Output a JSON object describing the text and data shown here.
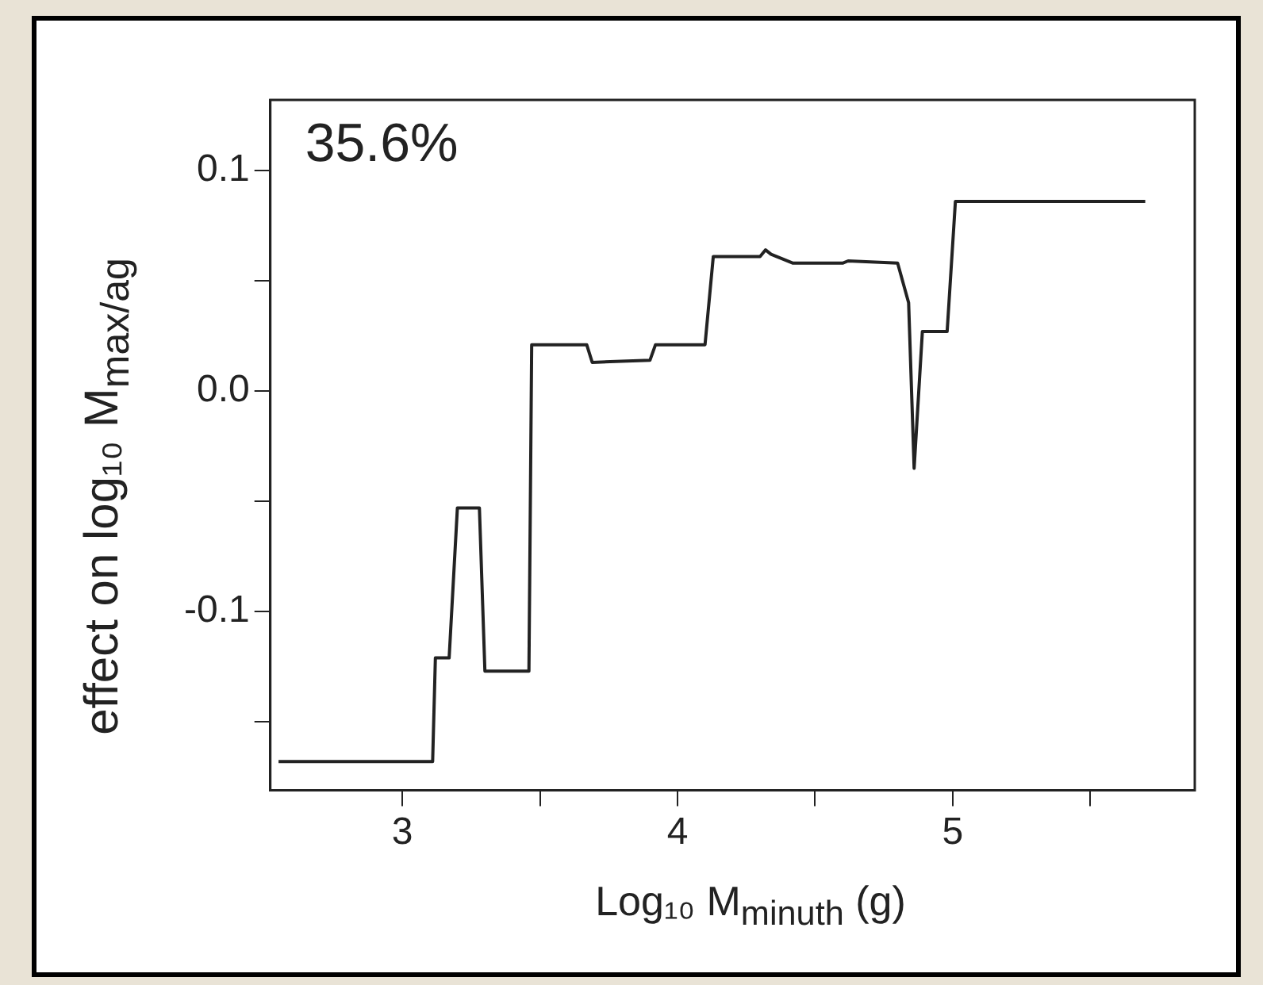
{
  "chart_data": {
    "type": "line",
    "xlabel": "Log₁₀ M$_{minuth}$ (g)",
    "ylabel": "effect on log₁₀ M$_{max/ag}$",
    "annotations": [
      "35.6%"
    ],
    "xlim": [
      2.52,
      5.88
    ],
    "xticks": [
      3,
      {
        "value": 3.5,
        "label": null
      },
      4,
      {
        "value": 4.5,
        "label": null
      },
      5,
      {
        "value": 5.5,
        "label": null
      }
    ],
    "ylim": [
      -0.181,
      0.132
    ],
    "yticks": [
      {
        "value": -0.15,
        "label": null
      },
      {
        "value": -0.1,
        "label": "-0.1"
      },
      {
        "value": -0.05,
        "label": null
      },
      {
        "value": 0,
        "label": "0.0"
      },
      {
        "value": 0.05,
        "label": null
      },
      {
        "value": 0.1,
        "label": "0.1"
      }
    ],
    "grid": false,
    "legend": false,
    "marker": "none",
    "line_style": "solid",
    "series": [
      {
        "color": "#222222",
        "x": [
          2.55,
          3.11,
          3.12,
          3.17,
          3.2,
          3.28,
          3.3,
          3.46,
          3.47,
          3.67,
          3.69,
          3.9,
          3.92,
          4.1,
          4.13,
          4.3,
          4.32,
          4.34,
          4.42,
          4.6,
          4.62,
          4.8,
          4.84,
          4.86,
          4.89,
          4.98,
          5.01,
          5.7
        ],
        "values": [
          -0.168,
          -0.168,
          -0.121,
          -0.121,
          -0.053,
          -0.053,
          -0.127,
          -0.127,
          0.021,
          0.021,
          0.013,
          0.014,
          0.021,
          0.021,
          0.061,
          0.061,
          0.064,
          0.062,
          0.058,
          0.058,
          0.059,
          0.058,
          0.04,
          -0.035,
          0.027,
          0.027,
          0.086,
          0.086
        ]
      }
    ]
  }
}
